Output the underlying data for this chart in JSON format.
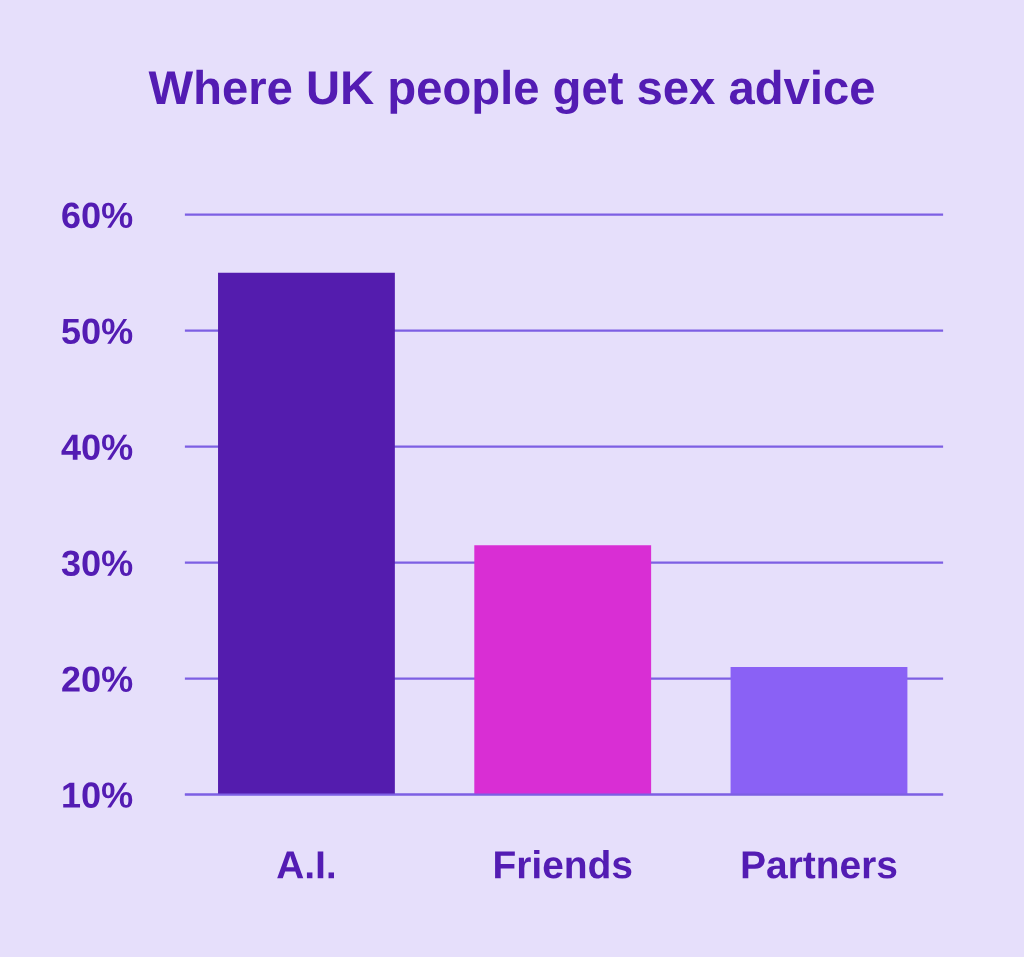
{
  "chart_data": {
    "type": "bar",
    "title": "Where UK people get sex advice",
    "categories": [
      "A.I.",
      "Friends",
      "Partners"
    ],
    "values": [
      55,
      31.5,
      21
    ],
    "colors": [
      "#541cae",
      "#d92ed4",
      "#8a61f5"
    ],
    "ylim": [
      10,
      60
    ],
    "yticks": [
      {
        "value": 10,
        "label": "10%"
      },
      {
        "value": 20,
        "label": "20%"
      },
      {
        "value": 30,
        "label": "30%"
      },
      {
        "value": 40,
        "label": "40%"
      },
      {
        "value": 50,
        "label": "50%"
      },
      {
        "value": 60,
        "label": "60%"
      }
    ],
    "grid": "y"
  }
}
